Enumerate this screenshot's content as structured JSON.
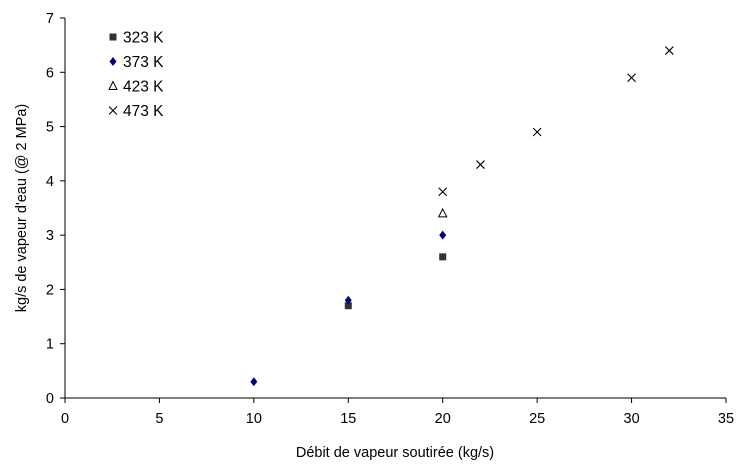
{
  "chart_data": {
    "type": "scatter",
    "title": "",
    "xlabel": "Débit de vapeur soutirée (kg/s)",
    "ylabel": "kg/s de vapeur d'eau (@ 2 MPa)",
    "xlim": [
      0,
      35
    ],
    "ylim": [
      0,
      7
    ],
    "xticks": [
      "0",
      "5",
      "10",
      "15",
      "20",
      "25",
      "30",
      "35"
    ],
    "yticks": [
      "0",
      "1",
      "2",
      "3",
      "4",
      "5",
      "6",
      "7"
    ],
    "grid": false,
    "legend_position": "top-left",
    "series": [
      {
        "name": "323 K",
        "marker": "square",
        "color": "#333333",
        "points": [
          [
            15,
            1.7
          ],
          [
            20,
            2.6
          ]
        ]
      },
      {
        "name": "373 K",
        "marker": "diamond",
        "color": "#000080",
        "points": [
          [
            10,
            0.3
          ],
          [
            15,
            1.8
          ],
          [
            20,
            3.0
          ]
        ]
      },
      {
        "name": "423 K",
        "marker": "triangle-open",
        "color": "#000000",
        "points": [
          [
            20,
            3.4
          ]
        ]
      },
      {
        "name": "473 K",
        "marker": "x",
        "color": "#000000",
        "points": [
          [
            20,
            3.8
          ],
          [
            22,
            4.3
          ],
          [
            25,
            4.9
          ],
          [
            30,
            5.9
          ],
          [
            32,
            6.4
          ]
        ]
      }
    ]
  }
}
